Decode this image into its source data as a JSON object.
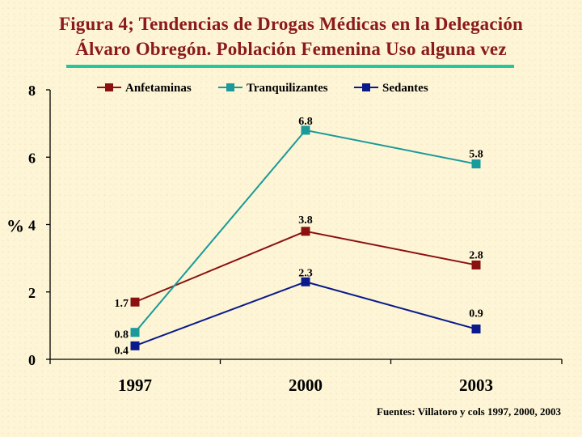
{
  "title_line1": "Figura 4; Tendencias de Drogas Médicas en  la Delegación",
  "title_line2": "Álvaro Obregón. Población Femenina Uso alguna vez",
  "source": "Fuentes: Villatoro y cols 1997, 2000, 2003",
  "colors": {
    "title": "#8b1a1a",
    "rule": "#22c79a",
    "Anfetaminas": "#8b1010",
    "Tranquilizantes": "#1a9a9a",
    "Sedantes": "#0a1a8c"
  },
  "chart_data": {
    "type": "line",
    "title": "Figura 4; Tendencias de Drogas Médicas en  la Delegación Álvaro Obregón. Población Femenina Uso alguna vez",
    "xlabel": "",
    "ylabel": "%",
    "categories": [
      "1997",
      "2000",
      "2003"
    ],
    "ylim": [
      0,
      8
    ],
    "yticks": [
      "0",
      "2",
      "4",
      "6",
      "8"
    ],
    "grid": false,
    "legend_position": "top",
    "series": [
      {
        "name": "Anfetaminas",
        "values": [
          1.7,
          3.8,
          2.8
        ],
        "labels": [
          "1.7",
          "3.8",
          "2.8"
        ]
      },
      {
        "name": "Tranquilizantes",
        "values": [
          0.8,
          6.8,
          5.8
        ],
        "labels": [
          "0.8",
          "6.8",
          "5.8"
        ]
      },
      {
        "name": "Sedantes",
        "values": [
          0.4,
          2.3,
          0.9
        ],
        "labels": [
          "0.4",
          "2.3",
          "0.9"
        ]
      }
    ]
  }
}
